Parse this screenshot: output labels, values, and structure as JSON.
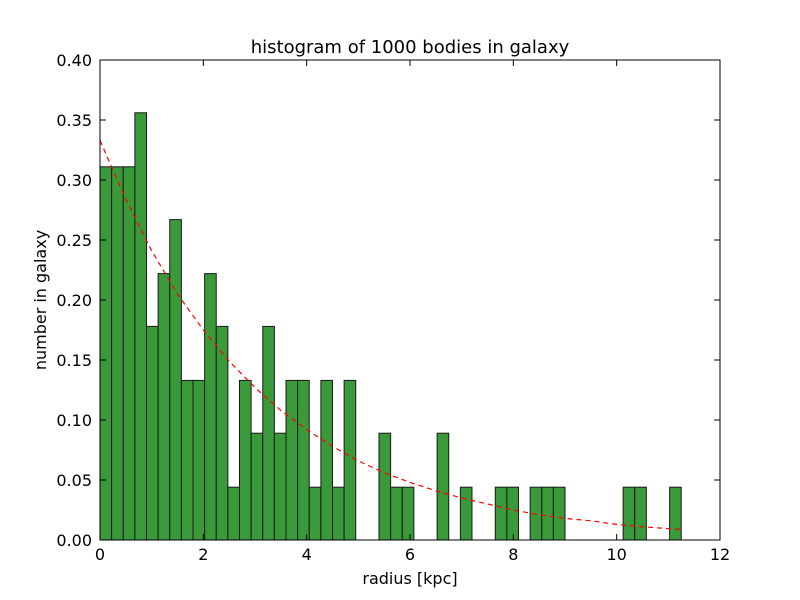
{
  "chart_data": {
    "type": "bar",
    "title": "histogram of 1000 bodies in galaxy",
    "xlabel": "radius [kpc]",
    "ylabel": "number in galaxy",
    "xlim": [
      0,
      12
    ],
    "ylim": [
      0,
      0.4
    ],
    "x_ticks": [
      "0",
      "2",
      "4",
      "6",
      "8",
      "10",
      "12"
    ],
    "y_ticks": [
      "0.00",
      "0.05",
      "0.10",
      "0.15",
      "0.20",
      "0.25",
      "0.30",
      "0.35",
      "0.40"
    ],
    "bar_color": "#3a9a3a",
    "bin_width": 0.225,
    "bin_start": 0,
    "values": [
      0.311,
      0.311,
      0.311,
      0.356,
      0.178,
      0.222,
      0.267,
      0.133,
      0.133,
      0.222,
      0.178,
      0.044,
      0.133,
      0.089,
      0.178,
      0.089,
      0.133,
      0.133,
      0.044,
      0.133,
      0.044,
      0.133,
      0.0,
      0.0,
      0.089,
      0.044,
      0.044,
      0.0,
      0.0,
      0.089,
      0.0,
      0.044,
      0.0,
      0.0,
      0.044,
      0.044,
      0.0,
      0.044,
      0.044,
      0.044,
      0.0,
      0.0,
      0.0,
      0.0,
      0.0,
      0.044,
      0.044,
      0.0,
      0.0,
      0.044
    ],
    "fit_curve": {
      "style": "dashed",
      "color": "#ff0000",
      "x": [
        0,
        0.5,
        1,
        1.5,
        2,
        2.5,
        3,
        3.5,
        4,
        4.5,
        5,
        5.5,
        6,
        6.5,
        7,
        7.5,
        8,
        8.5,
        9,
        9.5,
        10,
        10.5,
        11,
        11.3
      ],
      "y": [
        0.333,
        0.284,
        0.241,
        0.205,
        0.175,
        0.149,
        0.127,
        0.108,
        0.092,
        0.078,
        0.066,
        0.056,
        0.048,
        0.041,
        0.035,
        0.03,
        0.025,
        0.021,
        0.018,
        0.016,
        0.013,
        0.011,
        0.0095,
        0.0087
      ]
    },
    "grid": false
  }
}
